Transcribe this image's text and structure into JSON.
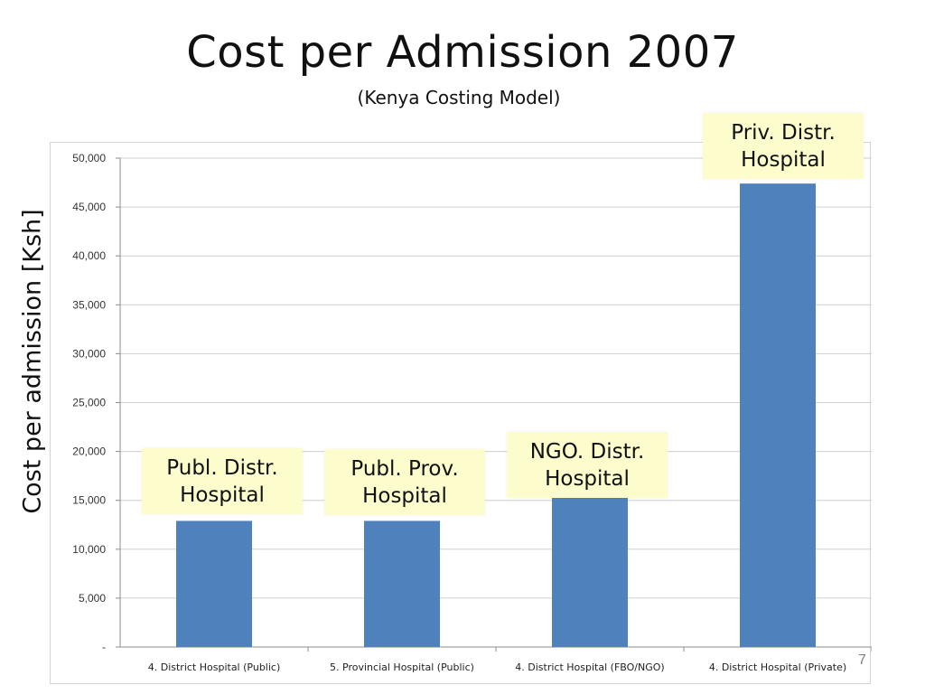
{
  "slide": {
    "title": "Cost per Admission 2007",
    "subtitle": "(Kenya Costing Model)",
    "page_number": "7"
  },
  "chart_data": {
    "type": "bar",
    "title": "",
    "xlabel": "",
    "ylabel": "Cost per admission [Ksh]",
    "categories": [
      "4. District Hospital (Public)",
      "5. Provincial Hospital (Public)",
      "4. District Hospital (FBO/NGO)",
      "4. District Hospital (Private)"
    ],
    "values": [
      12900,
      12900,
      15300,
      47400
    ],
    "ylim": [
      0,
      50000
    ],
    "yticks": [
      "-",
      "5,000",
      "10,000",
      "15,000",
      "20,000",
      "25,000",
      "30,000",
      "35,000",
      "40,000",
      "45,000",
      "50,000"
    ],
    "bar_color": "#4f81bd",
    "grid": true,
    "legend": "none",
    "annotations": [
      {
        "line1": "Publ. Distr.",
        "line2": "Hospital"
      },
      {
        "line1": "Publ. Prov.",
        "line2": "Hospital"
      },
      {
        "line1": "NGO. Distr.",
        "line2": "Hospital"
      },
      {
        "line1": "Priv. Distr.",
        "line2": "Hospital"
      }
    ],
    "annotation_color": "#fdfccd"
  }
}
